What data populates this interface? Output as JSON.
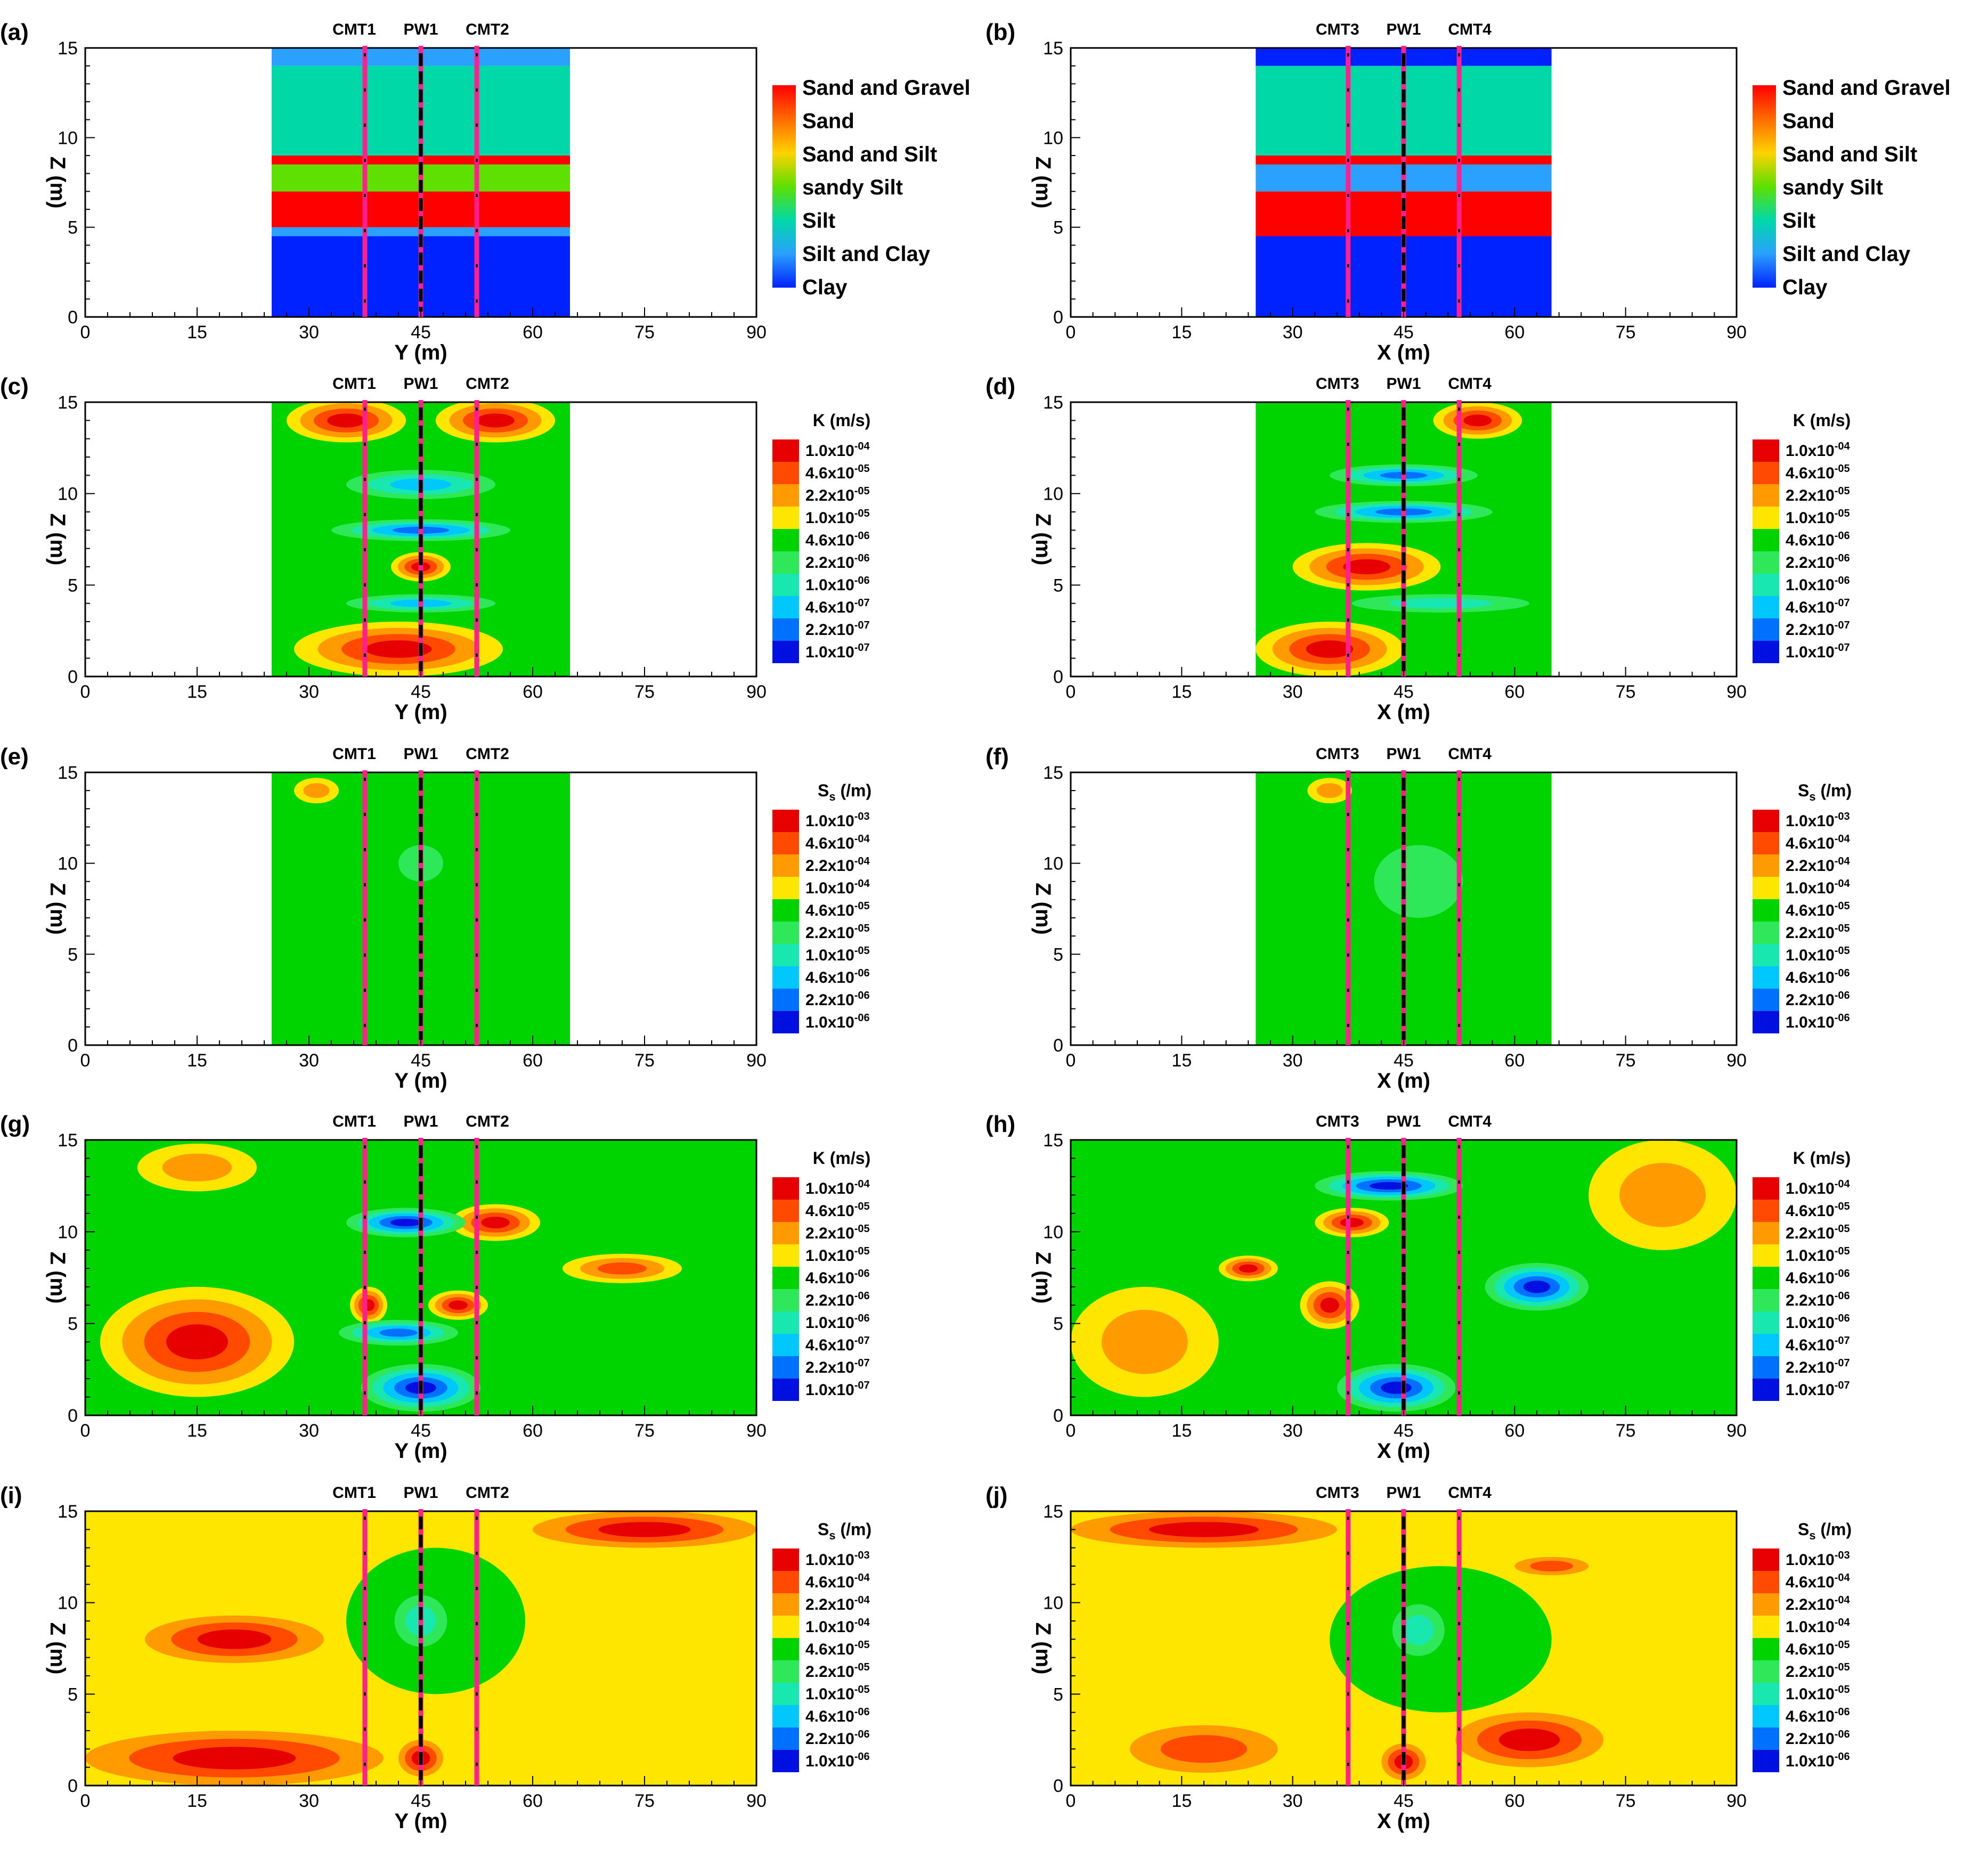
{
  "figure": {
    "panels": [
      {
        "id": "a",
        "label": "(a)",
        "kind": "lithology",
        "xlabel": "Y (m)",
        "ylabel": "Z (m)",
        "wells": [
          "CMT1",
          "PW1",
          "CMT2"
        ]
      },
      {
        "id": "b",
        "label": "(b)",
        "kind": "lithology",
        "xlabel": "X (m)",
        "ylabel": "Z (m)",
        "wells": [
          "CMT3",
          "PW1",
          "CMT4"
        ]
      },
      {
        "id": "c",
        "label": "(c)",
        "kind": "K",
        "xlabel": "Y (m)",
        "ylabel": "Z (m)",
        "wells": [
          "CMT1",
          "PW1",
          "CMT2"
        ]
      },
      {
        "id": "d",
        "label": "(d)",
        "kind": "K",
        "xlabel": "X (m)",
        "ylabel": "Z (m)",
        "wells": [
          "CMT3",
          "PW1",
          "CMT4"
        ]
      },
      {
        "id": "e",
        "label": "(e)",
        "kind": "Ss",
        "xlabel": "Y (m)",
        "ylabel": "Z (m)",
        "wells": [
          "CMT1",
          "PW1",
          "CMT2"
        ]
      },
      {
        "id": "f",
        "label": "(f)",
        "kind": "Ss",
        "xlabel": "X (m)",
        "ylabel": "Z (m)",
        "wells": [
          "CMT3",
          "PW1",
          "CMT4"
        ]
      },
      {
        "id": "g",
        "label": "(g)",
        "kind": "K",
        "xlabel": "Y (m)",
        "ylabel": "Z (m)",
        "wells": [
          "CMT1",
          "PW1",
          "CMT2"
        ]
      },
      {
        "id": "h",
        "label": "(h)",
        "kind": "K",
        "xlabel": "X (m)",
        "ylabel": "Z (m)",
        "wells": [
          "CMT3",
          "PW1",
          "CMT4"
        ]
      },
      {
        "id": "i",
        "label": "(i)",
        "kind": "Ss",
        "xlabel": "Y (m)",
        "ylabel": "Z (m)",
        "wells": [
          "CMT1",
          "PW1",
          "CMT2"
        ]
      },
      {
        "id": "j",
        "label": "(j)",
        "kind": "Ss",
        "xlabel": "X (m)",
        "ylabel": "Z (m)",
        "wells": [
          "CMT3",
          "PW1",
          "CMT4"
        ]
      }
    ],
    "legends": {
      "lithology": {
        "title": "",
        "entries": [
          "Sand and Gravel",
          "Sand",
          "Sand and Silt",
          "sandy Silt",
          "Silt",
          "Silt and Clay",
          "Clay"
        ],
        "colors": [
          "#ff0000",
          "#ff6a00",
          "#ffd200",
          "#5ee000",
          "#00d8a8",
          "#2aa0ff",
          "#0022ff"
        ]
      },
      "K": {
        "title_main": "K (m/s)",
        "entries": [
          {
            "mantissa": "1.0x10",
            "exp": "-04"
          },
          {
            "mantissa": "4.6x10",
            "exp": "-05"
          },
          {
            "mantissa": "2.2x10",
            "exp": "-05"
          },
          {
            "mantissa": "1.0x10",
            "exp": "-05"
          },
          {
            "mantissa": "4.6x10",
            "exp": "-06"
          },
          {
            "mantissa": "2.2x10",
            "exp": "-06"
          },
          {
            "mantissa": "1.0x10",
            "exp": "-06"
          },
          {
            "mantissa": "4.6x10",
            "exp": "-07"
          },
          {
            "mantissa": "2.2x10",
            "exp": "-07"
          },
          {
            "mantissa": "1.0x10",
            "exp": "-07"
          }
        ]
      },
      "Ss": {
        "title_main": "S",
        "title_sub": "s",
        "title_unit": " (/m)",
        "entries": [
          {
            "mantissa": "1.0x10",
            "exp": "-03"
          },
          {
            "mantissa": "4.6x10",
            "exp": "-04"
          },
          {
            "mantissa": "2.2x10",
            "exp": "-04"
          },
          {
            "mantissa": "1.0x10",
            "exp": "-04"
          },
          {
            "mantissa": "4.6x10",
            "exp": "-05"
          },
          {
            "mantissa": "2.2x10",
            "exp": "-05"
          },
          {
            "mantissa": "1.0x10",
            "exp": "-05"
          },
          {
            "mantissa": "4.6x10",
            "exp": "-06"
          },
          {
            "mantissa": "2.2x10",
            "exp": "-06"
          },
          {
            "mantissa": "1.0x10",
            "exp": "-06"
          }
        ]
      },
      "ramp_colors": [
        "#e60000",
        "#ff4a00",
        "#ff9a00",
        "#ffe600",
        "#00d400",
        "#2ee85a",
        "#18e8b0",
        "#00c8ff",
        "#0070ff",
        "#0010e0"
      ]
    },
    "colors": {
      "well_line": "#ff1f8f",
      "well_screen": "#000000"
    }
  },
  "chart_data": [
    {
      "panel": "a",
      "type": "heatmap",
      "title": "",
      "xlabel": "Y (m)",
      "ylabel": "Z (m)",
      "xlim": [
        0,
        90
      ],
      "ylim": [
        0,
        15
      ],
      "xticks": [
        0,
        15,
        30,
        45,
        60,
        75,
        90
      ],
      "yticks": [
        0,
        5,
        10,
        15
      ],
      "data_extent_x": [
        25,
        65
      ],
      "wells": [
        {
          "name": "CMT1",
          "x": 37.5
        },
        {
          "name": "PW1",
          "x": 45
        },
        {
          "name": "CMT2",
          "x": 52.5
        }
      ],
      "layers": [
        {
          "z": [
            0,
            4.5
          ],
          "class": "Clay"
        },
        {
          "z": [
            4.5,
            5
          ],
          "class": "Silt and Clay"
        },
        {
          "z": [
            5,
            7
          ],
          "class": "Sand and Gravel"
        },
        {
          "z": [
            7,
            8.5
          ],
          "class": "sandy Silt"
        },
        {
          "z": [
            8.5,
            9
          ],
          "class": "Sand and Gravel"
        },
        {
          "z": [
            9,
            14
          ],
          "class": "Silt"
        },
        {
          "z": [
            14,
            15
          ],
          "class": "Silt and Clay"
        }
      ]
    },
    {
      "panel": "b",
      "type": "heatmap",
      "title": "",
      "xlabel": "X (m)",
      "ylabel": "Z (m)",
      "xlim": [
        0,
        90
      ],
      "ylim": [
        0,
        15
      ],
      "xticks": [
        0,
        15,
        30,
        45,
        60,
        75,
        90
      ],
      "yticks": [
        0,
        5,
        10,
        15
      ],
      "data_extent_x": [
        25,
        65
      ],
      "wells": [
        {
          "name": "CMT3",
          "x": 37.5
        },
        {
          "name": "PW1",
          "x": 45
        },
        {
          "name": "CMT4",
          "x": 52.5
        }
      ],
      "layers": [
        {
          "z": [
            0,
            4.5
          ],
          "class": "Clay"
        },
        {
          "z": [
            4.5,
            7
          ],
          "class": "Sand and Gravel"
        },
        {
          "z": [
            7,
            8.5
          ],
          "class": "Silt and Clay"
        },
        {
          "z": [
            8.5,
            9
          ],
          "class": "Sand and Gravel"
        },
        {
          "z": [
            9,
            14
          ],
          "class": "Silt"
        },
        {
          "z": [
            14,
            15
          ],
          "class": "Clay"
        }
      ]
    },
    {
      "panel": "c",
      "type": "heatmap",
      "title": "",
      "xlabel": "Y (m)",
      "ylabel": "Z (m)",
      "xlim": [
        0,
        90
      ],
      "ylim": [
        0,
        15
      ],
      "xticks": [
        0,
        15,
        30,
        45,
        60,
        75,
        90
      ],
      "yticks": [
        0,
        5,
        10,
        15
      ],
      "data_extent_x": [
        25,
        65
      ],
      "wells": [
        {
          "name": "CMT1",
          "x": 37.5
        },
        {
          "name": "PW1",
          "x": 45
        },
        {
          "name": "CMT2",
          "x": 52.5
        }
      ],
      "background_level": 4,
      "features": [
        {
          "x": 35,
          "z": 14,
          "rx": 8,
          "rz": 1.2,
          "level": 0
        },
        {
          "x": 55,
          "z": 14,
          "rx": 8,
          "rz": 1.2,
          "level": 0
        },
        {
          "x": 45,
          "z": 6,
          "rx": 4,
          "rz": 0.8,
          "level": 0
        },
        {
          "x": 42,
          "z": 1.5,
          "rx": 14,
          "rz": 1.5,
          "level": 0
        },
        {
          "x": 45,
          "z": 10.5,
          "rx": 10,
          "rz": 0.8,
          "level": 7
        },
        {
          "x": 45,
          "z": 8,
          "rx": 12,
          "rz": 0.6,
          "level": 8
        },
        {
          "x": 45,
          "z": 4,
          "rx": 10,
          "rz": 0.5,
          "level": 7
        }
      ]
    },
    {
      "panel": "d",
      "type": "heatmap",
      "title": "",
      "xlabel": "X (m)",
      "ylabel": "Z (m)",
      "xlim": [
        0,
        90
      ],
      "ylim": [
        0,
        15
      ],
      "xticks": [
        0,
        15,
        30,
        45,
        60,
        75,
        90
      ],
      "yticks": [
        0,
        5,
        10,
        15
      ],
      "data_extent_x": [
        25,
        65
      ],
      "wells": [
        {
          "name": "CMT3",
          "x": 37.5
        },
        {
          "name": "PW1",
          "x": 45
        },
        {
          "name": "CMT4",
          "x": 52.5
        }
      ],
      "background_level": 4,
      "features": [
        {
          "x": 55,
          "z": 14,
          "rx": 6,
          "rz": 1.0,
          "level": 0
        },
        {
          "x": 40,
          "z": 6,
          "rx": 10,
          "rz": 1.3,
          "level": 0
        },
        {
          "x": 35,
          "z": 1.5,
          "rx": 10,
          "rz": 1.5,
          "level": 0
        },
        {
          "x": 45,
          "z": 11,
          "rx": 10,
          "rz": 0.6,
          "level": 8
        },
        {
          "x": 45,
          "z": 9,
          "rx": 12,
          "rz": 0.6,
          "level": 8
        },
        {
          "x": 50,
          "z": 4,
          "rx": 12,
          "rz": 0.5,
          "level": 6
        }
      ]
    },
    {
      "panel": "e",
      "type": "heatmap",
      "title": "",
      "xlabel": "Y (m)",
      "ylabel": "Z (m)",
      "xlim": [
        0,
        90
      ],
      "ylim": [
        0,
        15
      ],
      "xticks": [
        0,
        15,
        30,
        45,
        60,
        75,
        90
      ],
      "yticks": [
        0,
        5,
        10,
        15
      ],
      "data_extent_x": [
        25,
        65
      ],
      "wells": [
        {
          "name": "CMT1",
          "x": 37.5
        },
        {
          "name": "PW1",
          "x": 45
        },
        {
          "name": "CMT2",
          "x": 52.5
        }
      ],
      "background_level": 4,
      "features": [
        {
          "x": 45,
          "z": 10,
          "rx": 3,
          "rz": 1.0,
          "level": 5
        },
        {
          "x": 31,
          "z": 14,
          "rx": 3,
          "rz": 0.7,
          "level": 2
        }
      ]
    },
    {
      "panel": "f",
      "type": "heatmap",
      "title": "",
      "xlabel": "X (m)",
      "ylabel": "Z (m)",
      "xlim": [
        0,
        90
      ],
      "ylim": [
        0,
        15
      ],
      "xticks": [
        0,
        15,
        30,
        45,
        60,
        75,
        90
      ],
      "yticks": [
        0,
        5,
        10,
        15
      ],
      "data_extent_x": [
        25,
        65
      ],
      "wells": [
        {
          "name": "CMT3",
          "x": 37.5
        },
        {
          "name": "PW1",
          "x": 45
        },
        {
          "name": "CMT4",
          "x": 52.5
        }
      ],
      "background_level": 4,
      "features": [
        {
          "x": 47,
          "z": 9,
          "rx": 6,
          "rz": 2.0,
          "level": 5
        },
        {
          "x": 35,
          "z": 14,
          "rx": 3,
          "rz": 0.7,
          "level": 2
        }
      ]
    },
    {
      "panel": "g",
      "type": "heatmap",
      "title": "",
      "xlabel": "Y (m)",
      "ylabel": "Z (m)",
      "xlim": [
        0,
        90
      ],
      "ylim": [
        0,
        15
      ],
      "xticks": [
        0,
        15,
        30,
        45,
        60,
        75,
        90
      ],
      "yticks": [
        0,
        5,
        10,
        15
      ],
      "data_extent_x": [
        0,
        90
      ],
      "wells": [
        {
          "name": "CMT1",
          "x": 37.5
        },
        {
          "name": "PW1",
          "x": 45
        },
        {
          "name": "CMT2",
          "x": 52.5
        }
      ],
      "background_level": 4,
      "features": [
        {
          "x": 15,
          "z": 4,
          "rx": 13,
          "rz": 3,
          "level": 0
        },
        {
          "x": 15,
          "z": 13.5,
          "rx": 8,
          "rz": 1.3,
          "level": 2
        },
        {
          "x": 55,
          "z": 10.5,
          "rx": 6,
          "rz": 1.0,
          "level": 0
        },
        {
          "x": 50,
          "z": 6,
          "rx": 4,
          "rz": 0.8,
          "level": 0
        },
        {
          "x": 38,
          "z": 6,
          "rx": 2.5,
          "rz": 1.0,
          "level": 0
        },
        {
          "x": 43,
          "z": 10.5,
          "rx": 8,
          "rz": 0.8,
          "level": 9
        },
        {
          "x": 45,
          "z": 1.5,
          "rx": 8,
          "rz": 1.3,
          "level": 9
        },
        {
          "x": 42,
          "z": 4.5,
          "rx": 8,
          "rz": 0.7,
          "level": 8
        },
        {
          "x": 72,
          "z": 8,
          "rx": 8,
          "rz": 0.8,
          "level": 1
        }
      ]
    },
    {
      "panel": "h",
      "type": "heatmap",
      "title": "",
      "xlabel": "X (m)",
      "ylabel": "Z (m)",
      "xlim": [
        0,
        90
      ],
      "ylim": [
        0,
        15
      ],
      "xticks": [
        0,
        15,
        30,
        45,
        60,
        75,
        90
      ],
      "yticks": [
        0,
        5,
        10,
        15
      ],
      "data_extent_x": [
        0,
        90
      ],
      "wells": [
        {
          "name": "CMT3",
          "x": 37.5
        },
        {
          "name": "PW1",
          "x": 45
        },
        {
          "name": "CMT4",
          "x": 52.5
        }
      ],
      "background_level": 4,
      "features": [
        {
          "x": 80,
          "z": 12,
          "rx": 10,
          "rz": 3,
          "level": 2
        },
        {
          "x": 10,
          "z": 4,
          "rx": 10,
          "rz": 3,
          "level": 2
        },
        {
          "x": 38,
          "z": 10.5,
          "rx": 5,
          "rz": 0.8,
          "level": 0
        },
        {
          "x": 35,
          "z": 6,
          "rx": 4,
          "rz": 1.3,
          "level": 0
        },
        {
          "x": 24,
          "z": 8,
          "rx": 4,
          "rz": 0.7,
          "level": 0
        },
        {
          "x": 43,
          "z": 12.5,
          "rx": 10,
          "rz": 0.8,
          "level": 9
        },
        {
          "x": 44,
          "z": 1.5,
          "rx": 8,
          "rz": 1.3,
          "level": 9
        },
        {
          "x": 63,
          "z": 7,
          "rx": 7,
          "rz": 1.3,
          "level": 9
        }
      ]
    },
    {
      "panel": "i",
      "type": "heatmap",
      "title": "",
      "xlabel": "Y (m)",
      "ylabel": "Z (m)",
      "xlim": [
        0,
        90
      ],
      "ylim": [
        0,
        15
      ],
      "xticks": [
        0,
        15,
        30,
        45,
        60,
        75,
        90
      ],
      "yticks": [
        0,
        5,
        10,
        15
      ],
      "data_extent_x": [
        0,
        90
      ],
      "wells": [
        {
          "name": "CMT1",
          "x": 37.5
        },
        {
          "name": "PW1",
          "x": 45
        },
        {
          "name": "CMT2",
          "x": 52.5
        }
      ],
      "background_level": 3,
      "features": [
        {
          "x": 20,
          "z": 1.5,
          "rx": 20,
          "rz": 1.5,
          "level": 0
        },
        {
          "x": 20,
          "z": 8,
          "rx": 12,
          "rz": 1.3,
          "level": 0
        },
        {
          "x": 75,
          "z": 14,
          "rx": 15,
          "rz": 1.0,
          "level": 0
        },
        {
          "x": 47,
          "z": 9,
          "rx": 12,
          "rz": 4,
          "level": 4
        },
        {
          "x": 45,
          "z": 9,
          "rx": 5,
          "rz": 2,
          "level": 6
        },
        {
          "x": 45,
          "z": 1.5,
          "rx": 3,
          "rz": 1.0,
          "level": 0
        }
      ]
    },
    {
      "panel": "j",
      "type": "heatmap",
      "title": "",
      "xlabel": "X (m)",
      "ylabel": "Z (m)",
      "xlim": [
        0,
        90
      ],
      "ylim": [
        0,
        15
      ],
      "xticks": [
        0,
        15,
        30,
        45,
        60,
        75,
        90
      ],
      "yticks": [
        0,
        5,
        10,
        15
      ],
      "data_extent_x": [
        0,
        90
      ],
      "wells": [
        {
          "name": "CMT3",
          "x": 37.5
        },
        {
          "name": "PW1",
          "x": 45
        },
        {
          "name": "CMT4",
          "x": 52.5
        }
      ],
      "background_level": 3,
      "features": [
        {
          "x": 18,
          "z": 14,
          "rx": 18,
          "rz": 1.0,
          "level": 0
        },
        {
          "x": 18,
          "z": 2,
          "rx": 10,
          "rz": 1.3,
          "level": 1
        },
        {
          "x": 62,
          "z": 2.5,
          "rx": 10,
          "rz": 1.5,
          "level": 0
        },
        {
          "x": 45,
          "z": 1.3,
          "rx": 3,
          "rz": 1.0,
          "level": 0
        },
        {
          "x": 50,
          "z": 8,
          "rx": 15,
          "rz": 4,
          "level": 4
        },
        {
          "x": 47,
          "z": 8.5,
          "rx": 5,
          "rz": 2,
          "level": 6
        },
        {
          "x": 65,
          "z": 12,
          "rx": 5,
          "rz": 0.5,
          "level": 1
        }
      ]
    }
  ]
}
